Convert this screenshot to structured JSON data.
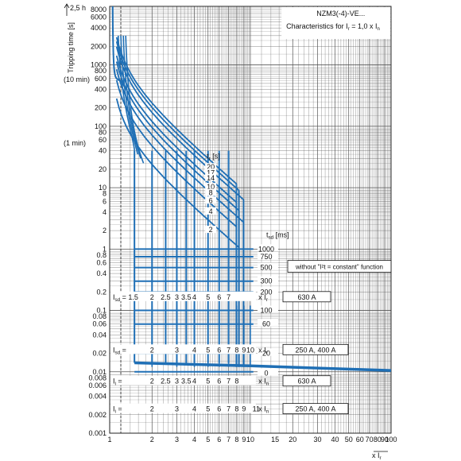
{
  "chart_data": {
    "type": "line",
    "title": "NZM3(-4)-VE...",
    "subtitle": "Characteristics for I",
    "subtitle_sub": "r",
    "subtitle_tail": " = 1,0 x I",
    "subtitle_sub2": "n",
    "ylabel": "Tripping time [s]",
    "ytop_label": "2,5 h",
    "y10min_label": "(10 min)",
    "y1min_label": "(1 min)",
    "xlabel": "x I",
    "xlabel_sub": "r",
    "x_scale": "log",
    "y_scale": "log",
    "xlim": [
      1,
      100
    ],
    "ylim": [
      0.001,
      9000
    ],
    "grid": true,
    "x_ticks": [
      "1",
      "2",
      "3",
      "4",
      "5",
      "6",
      "7",
      "8",
      "9",
      "10",
      "15",
      "20",
      "30",
      "40",
      "50",
      "60",
      "70",
      "80",
      "90",
      "100"
    ],
    "y_ticks": [
      "8000",
      "6000",
      "4000",
      "2000",
      "1000",
      "800",
      "600",
      "400",
      "200",
      "100",
      "80",
      "60",
      "40",
      "20",
      "10",
      "8",
      "6",
      "4",
      "2",
      "1",
      "0.8",
      "0.6",
      "0.4",
      "0.2",
      "0.1",
      "0.08",
      "0.06",
      "0.04",
      "0.02",
      "0.01",
      "0.008",
      "0.006",
      "0.004",
      "0.002",
      "0.001"
    ],
    "tr_label": "t",
    "tr_sub": "r",
    "tr_unit": " [s]",
    "tr_values": [
      20,
      17,
      14,
      10,
      8,
      6,
      4,
      2
    ],
    "tsd_label": "t",
    "tsd_sub": "sd",
    "tsd_unit": " [ms]",
    "tsd_values": [
      1000,
      750,
      500,
      300,
      200,
      100,
      60,
      20,
      0
    ],
    "no_i2t_box": "without \"I²t = constant\" function",
    "isd_row_630": {
      "label": "I",
      "sub": "sd",
      "eq": " = 1.5",
      "values": [
        "2",
        "2.5",
        "3",
        "3.5",
        "4",
        "5",
        "6",
        "7"
      ],
      "unit": "x I",
      "unit_sub": "r",
      "box": "630 A"
    },
    "isd_row_250": {
      "label": "I",
      "sub": "sd",
      "eq": " =",
      "values": [
        "2",
        "3",
        "4",
        "5",
        "6",
        "7",
        "8",
        "9",
        "10"
      ],
      "unit": "x I",
      "unit_sub": "r",
      "box": "250 A, 400 A"
    },
    "ii_row_630": {
      "label": "I",
      "sub": "i",
      "eq": " =",
      "values": [
        "2",
        "2.5",
        "3",
        "3.5",
        "4",
        "5",
        "6",
        "7",
        "8"
      ],
      "unit": "x I",
      "unit_sub": "n",
      "box": "630 A"
    },
    "ii_row_250": {
      "label": "I",
      "sub": "i",
      "eq": " =",
      "values": [
        "2",
        "3",
        "4",
        "5",
        "6",
        "7",
        "8",
        "9",
        "11"
      ],
      "unit": "x I",
      "unit_sub": "n",
      "box": "250 A, 400 A"
    },
    "isd_x_630": [
      1.5,
      2,
      2.5,
      3,
      3.5,
      4,
      5,
      6,
      7
    ],
    "isd_x_250": [
      2,
      3,
      4,
      5,
      6,
      7,
      8,
      9,
      10
    ],
    "curve_color": "#1f6fb5",
    "grid_color": "#555555",
    "series": [
      {
        "name": "20",
        "x": [
          1.3,
          1.5,
          2,
          3,
          5,
          8
        ],
        "y": [
          700,
          400,
          250,
          110,
          40,
          15
        ]
      },
      {
        "name": "2",
        "x": [
          1.3,
          1.5,
          2,
          3,
          5,
          8
        ],
        "y": [
          250,
          80,
          30,
          10,
          3.5,
          1.5
        ]
      }
    ]
  }
}
